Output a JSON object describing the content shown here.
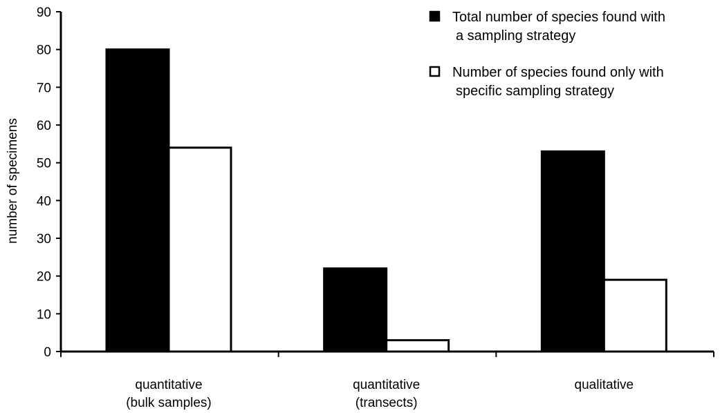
{
  "chart_data": {
    "type": "bar",
    "title": "",
    "xlabel": "",
    "ylabel": "number of specimens",
    "ylim": [
      0,
      90
    ],
    "yticks": [
      0,
      10,
      20,
      30,
      40,
      50,
      60,
      70,
      80,
      90
    ],
    "grid": false,
    "legend_position": "top-right",
    "categories": [
      [
        "quantitative",
        "(bulk samples)"
      ],
      [
        "quantitative",
        "(transects)"
      ],
      [
        "qualitative"
      ]
    ],
    "series": [
      {
        "name": [
          "Total number of species found with",
          "a sampling strategy"
        ],
        "values": [
          80,
          22,
          53
        ],
        "color": "#000000",
        "fill": "#000000"
      },
      {
        "name": [
          "Number of species found only with",
          "specific sampling strategy"
        ],
        "values": [
          54,
          3,
          19
        ],
        "color": "#000000",
        "fill": "#ffffff"
      }
    ]
  }
}
